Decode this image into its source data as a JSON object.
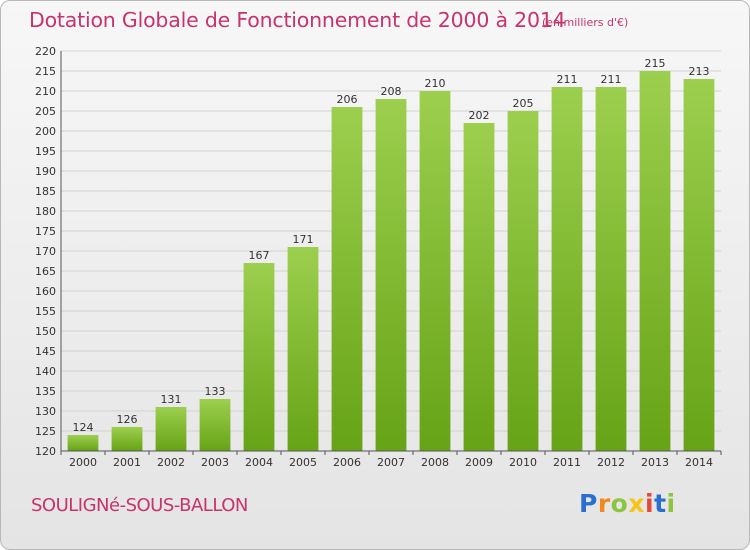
{
  "header": {
    "title": "Dotation Globale de Fonctionnement de 2000 à 2014",
    "unit": "(en milliers d'€)"
  },
  "footer": {
    "commune": "SOULIGNé-SOUS-BALLON",
    "brand_letters": [
      {
        "ch": "P",
        "color": "#2a6fd0"
      },
      {
        "ch": "r",
        "color": "#f08a1c"
      },
      {
        "ch": "o",
        "color": "#8cc63f"
      },
      {
        "ch": "x",
        "color": "#f5c518"
      },
      {
        "ch": "i",
        "color": "#e8463a"
      },
      {
        "ch": "t",
        "color": "#2a6fd0"
      },
      {
        "ch": "i",
        "color": "#8cc63f"
      }
    ]
  },
  "colors": {
    "title": "#c8336e",
    "bar_top": "#9ccf4e",
    "bar_bottom": "#66a316",
    "grid": "#d2d2d2",
    "axis_text": "#333333"
  },
  "chart_data": {
    "type": "bar",
    "title": "Dotation Globale de Fonctionnement de 2000 à 2014",
    "subtitle": "(en milliers d'€)",
    "xlabel": "",
    "ylabel": "",
    "categories": [
      "2000",
      "2001",
      "2002",
      "2003",
      "2004",
      "2005",
      "2006",
      "2007",
      "2008",
      "2009",
      "2010",
      "2011",
      "2012",
      "2013",
      "2014"
    ],
    "values": [
      124,
      126,
      131,
      133,
      167,
      171,
      206,
      208,
      210,
      202,
      205,
      211,
      211,
      215,
      213
    ],
    "ylim": [
      120,
      220
    ],
    "yticks": [
      120,
      125,
      130,
      135,
      140,
      145,
      150,
      155,
      160,
      165,
      170,
      175,
      180,
      185,
      190,
      195,
      200,
      205,
      210,
      215,
      220
    ],
    "grid": true,
    "legend": "none"
  }
}
